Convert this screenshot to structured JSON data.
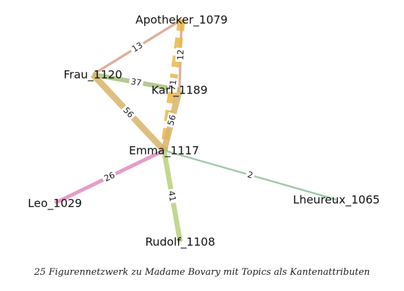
{
  "nodes": [
    {
      "id": "Apotheker_1079",
      "label": "Apotheker_1079"
    },
    {
      "id": "Frau_1120",
      "label": "Frau_1120"
    },
    {
      "id": "Karl_1189",
      "label": "Karl_1189"
    },
    {
      "id": "Emma_1117",
      "label": "Emma_1117"
    },
    {
      "id": "Leo_1029",
      "label": "Leo_1029"
    },
    {
      "id": "Lheureux_1065",
      "label": "Lheureux_1065"
    },
    {
      "id": "Rudolf_1108",
      "label": "Rudolf_1108"
    }
  ],
  "edges": [
    {
      "source": "Apotheker_1079",
      "target": "Frau_1120",
      "label": "13",
      "color": "#d9a28c",
      "weight": 13,
      "dashed": false
    },
    {
      "source": "Apotheker_1079",
      "target": "Karl_1189",
      "label": "12",
      "color": "#d9a28c",
      "weight": 12,
      "dashed": false
    },
    {
      "source": "Apotheker_1079",
      "target": "Emma_1117",
      "label": "71",
      "color": "#e8b84a",
      "weight": 71,
      "dashed": true
    },
    {
      "source": "Frau_1120",
      "target": "Karl_1189",
      "label": "37",
      "color": "#a8c07a",
      "weight": 37,
      "dashed": false
    },
    {
      "source": "Frau_1120",
      "target": "Emma_1117",
      "label": "56",
      "color": "#d9b46a",
      "weight": 56,
      "dashed": false
    },
    {
      "source": "Karl_1189",
      "target": "Emma_1117",
      "label": "56",
      "color": "#d9b46a",
      "weight": 56,
      "dashed": false
    },
    {
      "source": "Emma_1117",
      "target": "Leo_1029",
      "label": "26",
      "color": "#e08cc0",
      "weight": 26,
      "dashed": false
    },
    {
      "source": "Emma_1117",
      "target": "Lheureux_1065",
      "label": "2",
      "color": "#8fbf9a",
      "weight": 2,
      "dashed": false
    },
    {
      "source": "Emma_1117",
      "target": "Rudolf_1108",
      "label": "41",
      "color": "#b8d07a",
      "weight": 41,
      "dashed": false
    }
  ],
  "caption": "25  Figurennetzwerk zu Madame Bovary mit Topics als Kantenattributen"
}
